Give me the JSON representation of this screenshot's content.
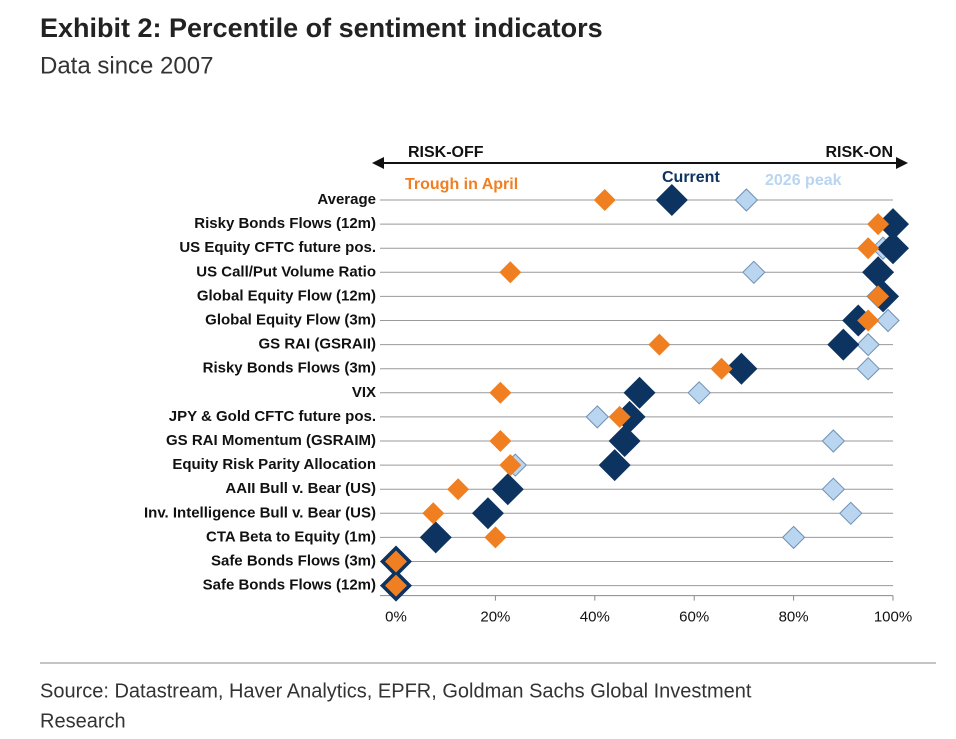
{
  "chart_data": {
    "type": "dot",
    "title": "Exhibit 2: Percentile of sentiment indicators",
    "subtitle": "Data since 2007",
    "left_label": "RISK-OFF",
    "right_label": "RISK-ON",
    "source": [
      "Source: Datastream, Haver Analytics, EPFR, Goldman Sachs Global Investment",
      "Research"
    ],
    "categories": [
      "Average",
      "Risky Bonds Flows (12m)",
      "US Equity CFTC future pos.",
      "US Call/Put Volume Ratio",
      "Global Equity Flow (12m)",
      "Global Equity Flow (3m)",
      "GS RAI (GSRAII)",
      "Risky Bonds Flows (3m)",
      "VIX",
      "JPY & Gold CFTC future pos.",
      "GS RAI Momentum (GSRAIM)",
      "Equity Risk Parity Allocation",
      "AAII Bull v. Bear (US)",
      "Inv. Intelligence Bull v. Bear (US)",
      "CTA Beta to Equity (1m)",
      "Safe Bonds Flows (3m)",
      "Safe Bonds Flows (12m)"
    ],
    "series": [
      {
        "name": "2026 peak",
        "color": "#b9d5ef",
        "values": [
          70.5,
          100,
          98,
          72,
          97,
          99,
          95,
          95,
          61,
          40.5,
          88,
          24,
          88,
          91.5,
          80,
          0,
          0
        ]
      },
      {
        "name": "Current",
        "color": "#0d3461",
        "values": [
          55.5,
          100,
          100,
          97,
          98,
          93,
          90,
          69.5,
          49,
          47,
          46,
          44,
          22.5,
          18.5,
          8,
          0,
          0
        ]
      },
      {
        "name": "Trough in April",
        "color": "#f07f22",
        "values": [
          42,
          97,
          95,
          23,
          97,
          95,
          53,
          65.5,
          21,
          45,
          21,
          23,
          12.5,
          7.5,
          20,
          0,
          0
        ]
      }
    ],
    "xlim": [
      0,
      100
    ],
    "xticks": [
      {
        "value": 0,
        "label": "0%"
      },
      {
        "value": 20,
        "label": "20%"
      },
      {
        "value": 40,
        "label": "40%"
      },
      {
        "value": 60,
        "label": "60%"
      },
      {
        "value": 80,
        "label": "80%"
      },
      {
        "value": 100,
        "label": "100%"
      }
    ]
  }
}
